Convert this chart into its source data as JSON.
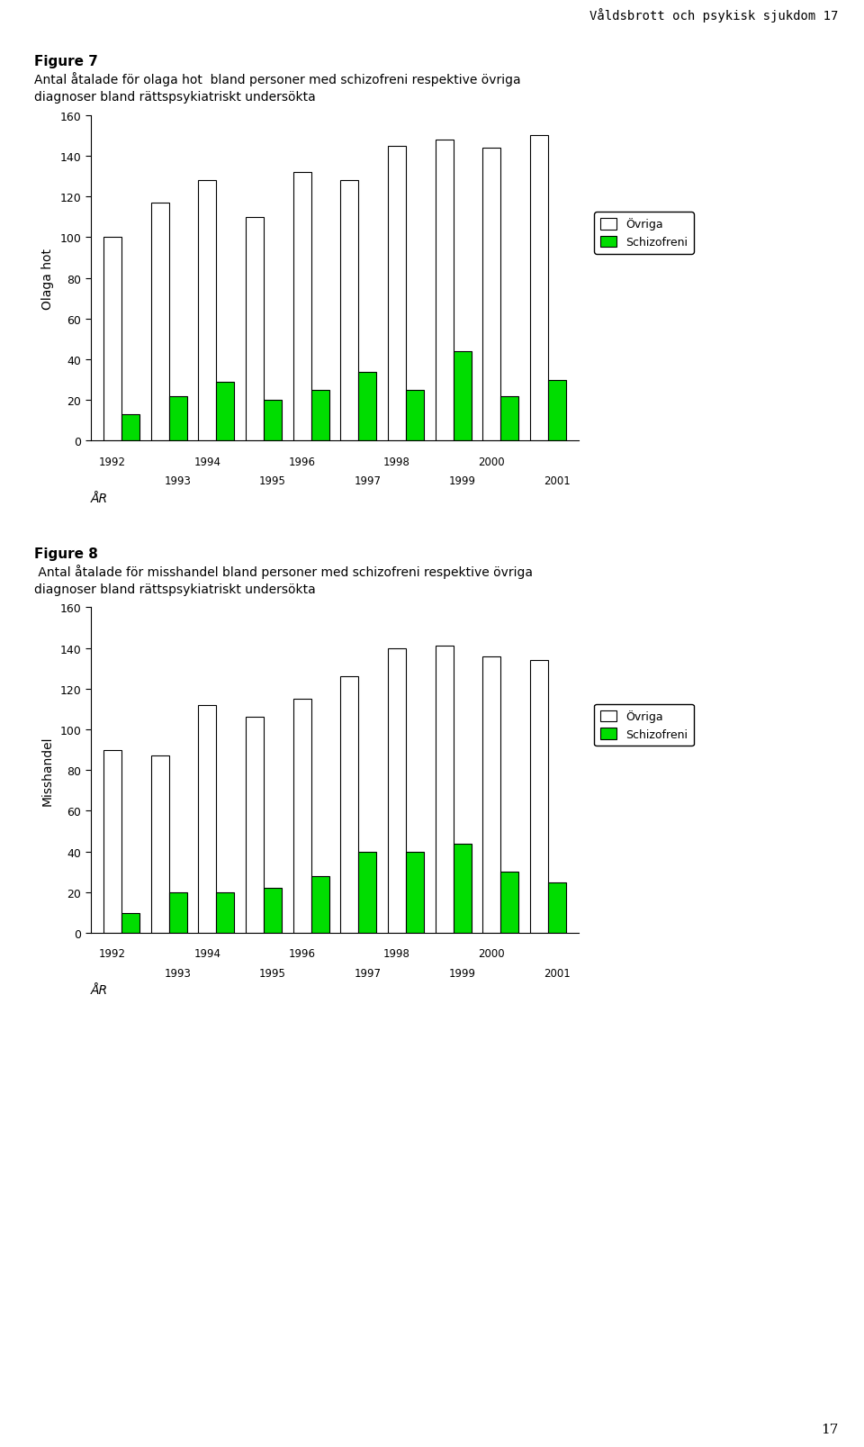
{
  "fig7": {
    "title_bold": "Figure 7",
    "title_line1": "Antal åtalade för olaga hot  bland personer med schizofreni respektive övriga",
    "title_line2": "diagnoser bland rättspsykiatriskt undersökta",
    "years": [
      1992,
      1993,
      1994,
      1995,
      1996,
      1997,
      1998,
      1999,
      2000,
      2001
    ],
    "ovriga": [
      100,
      117,
      128,
      110,
      132,
      128,
      145,
      148,
      144,
      150
    ],
    "schizofreni": [
      13,
      22,
      29,
      20,
      25,
      34,
      25,
      44,
      22,
      30
    ],
    "ylabel": "Olaga hot",
    "xlabel": "ÅR",
    "ylim": [
      0,
      160
    ],
    "yticks": [
      0,
      20,
      40,
      60,
      80,
      100,
      120,
      140,
      160
    ]
  },
  "fig8": {
    "title_bold": "Figure 8",
    "title_line1": " Antal åtalade för misshandel bland personer med schizofreni respektive övriga",
    "title_line2": "diagnoser bland rättspsykiatriskt undersökta",
    "years": [
      1992,
      1993,
      1994,
      1995,
      1996,
      1997,
      1998,
      1999,
      2000,
      2001
    ],
    "ovriga": [
      90,
      87,
      112,
      106,
      115,
      126,
      140,
      141,
      136,
      134
    ],
    "schizofreni": [
      10,
      20,
      20,
      22,
      28,
      40,
      40,
      44,
      30,
      25
    ],
    "ylabel": "Misshandel",
    "xlabel": "ÅR",
    "ylim": [
      0,
      160
    ],
    "yticks": [
      0,
      20,
      40,
      60,
      80,
      100,
      120,
      140,
      160
    ]
  },
  "ovriga_color": "#ffffff",
  "schizofreni_color": "#00dd00",
  "bar_edge_color": "#000000",
  "bar_width": 0.38,
  "legend_ovriga": "Övriga",
  "legend_schizofreni": "Schizofreni",
  "header_text": "Våldsbrott och psykisk sjukdom 17",
  "page_number": "17",
  "background_color": "#ffffff"
}
